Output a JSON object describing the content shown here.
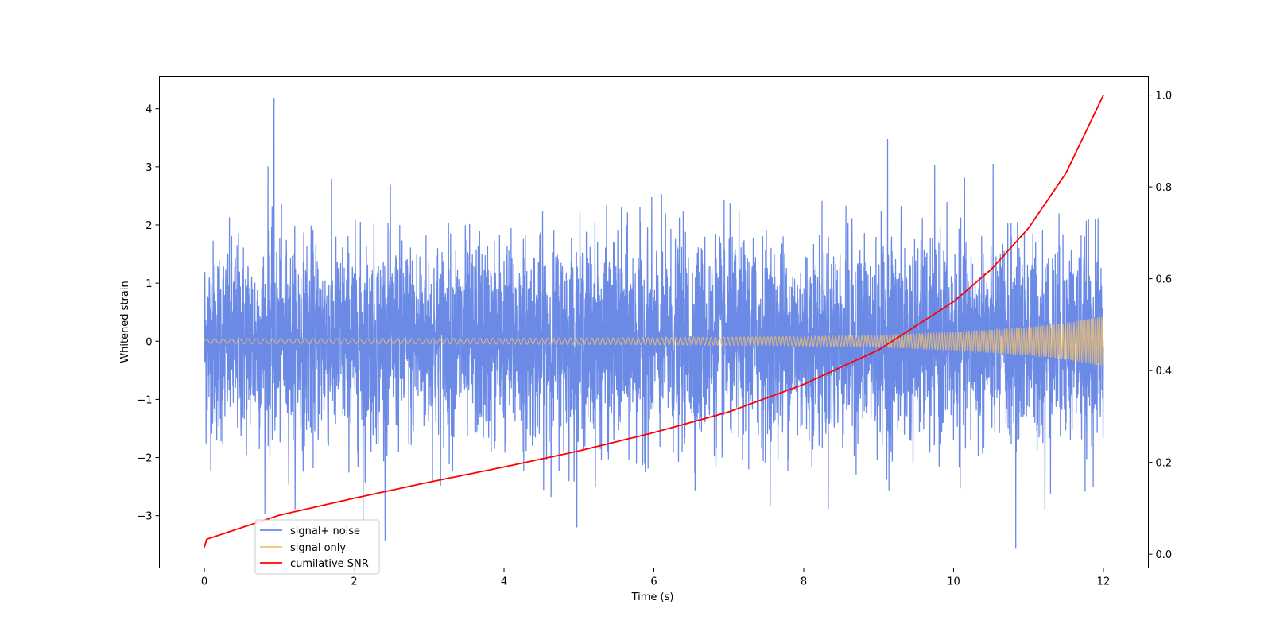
{
  "chart_data": {
    "type": "line",
    "title": "",
    "xlabel": "Time (s)",
    "ylabel": "Whitened strain",
    "y2label": "",
    "xlim": [
      -0.6,
      12.6
    ],
    "ylim": [
      -3.9,
      4.55
    ],
    "y2lim": [
      -0.03,
      1.04
    ],
    "xticks": [
      0,
      2,
      4,
      6,
      8,
      10,
      12
    ],
    "xtick_labels": [
      "0",
      "2",
      "4",
      "6",
      "8",
      "10",
      "12"
    ],
    "yticks": [
      4,
      3,
      2,
      1,
      0,
      -1,
      -2,
      -3
    ],
    "ytick_labels": [
      "4",
      "3",
      "2",
      "1",
      "0",
      "−1",
      "−2",
      "−3"
    ],
    "y2ticks": [
      1.0,
      0.8,
      0.6,
      0.4,
      0.2,
      0.0
    ],
    "y2tick_labels": [
      "1.0",
      "0.8",
      "0.6",
      "0.4",
      "0.2",
      "0.0"
    ],
    "grid": false,
    "legend_position": "lower-left",
    "series": [
      {
        "name": "signal+ noise",
        "axis": "left",
        "color": "#6b8ae6",
        "x_range": [
          0,
          12
        ],
        "std": 0.85,
        "min": -3.55,
        "max": 4.18,
        "peaks": [
          [
            0.93,
            4.18
          ],
          [
            0.85,
            3.0
          ],
          [
            9.12,
            3.47
          ],
          [
            10.83,
            -3.55
          ],
          [
            2.12,
            -3.15
          ],
          [
            11.22,
            -2.9
          ]
        ]
      },
      {
        "name": "signal only",
        "axis": "left",
        "color": "#f5c26b",
        "x": [
          0,
          2,
          4,
          6,
          8,
          9,
          10,
          11,
          11.5,
          12
        ],
        "envelope": [
          0.04,
          0.045,
          0.05,
          0.06,
          0.08,
          0.1,
          0.15,
          0.24,
          0.31,
          0.43
        ]
      },
      {
        "name": "cumilative SNR",
        "axis": "right",
        "color": "#ff0000",
        "x": [
          0,
          0.02,
          1,
          2,
          3,
          4,
          5,
          6,
          7,
          8,
          9,
          10,
          10.5,
          11,
          11.5,
          12
        ],
        "values": [
          0.015,
          0.032,
          0.085,
          0.122,
          0.157,
          0.19,
          0.225,
          0.265,
          0.31,
          0.37,
          0.445,
          0.55,
          0.62,
          0.71,
          0.83,
          1.0
        ]
      }
    ],
    "legend": [
      "signal+ noise",
      "signal only",
      "cumilative SNR"
    ]
  }
}
